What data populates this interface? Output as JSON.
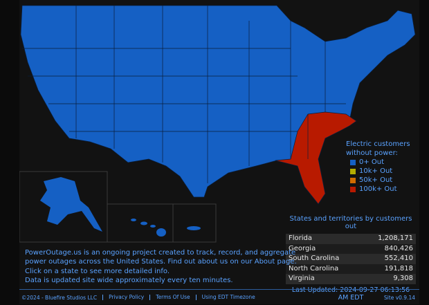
{
  "legend": {
    "title_lines": [
      "Electric customers",
      "without power:"
    ],
    "items": [
      {
        "label": "0+ Out",
        "color": "#1560c4"
      },
      {
        "label": "10k+ Out",
        "color": "#b5ad00"
      },
      {
        "label": "50k+ Out",
        "color": "#d06c00"
      },
      {
        "label": "100k+ Out",
        "color": "#b81a00"
      }
    ]
  },
  "table": {
    "title": "States and territories by customers out",
    "rows": [
      [
        "Florida",
        "1,208,171"
      ],
      [
        "Georgia",
        "840,426"
      ],
      [
        "South Carolina",
        "552,410"
      ],
      [
        "North Carolina",
        "191,818"
      ],
      [
        "Virginia",
        "9,308"
      ]
    ],
    "last_updated": "Last Updated: 2024-09-27 06:13:56 AM EDT"
  },
  "description": [
    "PowerOutage.us is an ongoing project created to track, record, and aggregate",
    "power outages across the United States. Find out about us on our About page.",
    "Click on a state to see more detailed info.",
    "Data is updated site wide approximately every ten minutes."
  ],
  "footer": {
    "copyright": "©2024 - Bluefire Studios LLC",
    "links": [
      "Privacy Policy",
      "Terms Of Use",
      "Using EDT Timezone"
    ],
    "version": "Site v0.9.14"
  }
}
